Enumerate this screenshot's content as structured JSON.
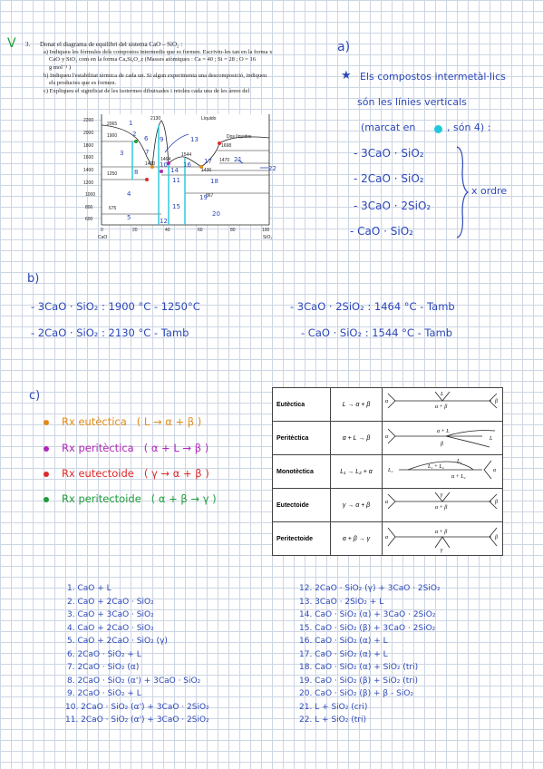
{
  "problem": {
    "check_mark": "V",
    "number": "3.",
    "line1": "Donat el diagrama de equilibri del sistema CaO – SiO₂ :",
    "line2": "a) Indiqueu les fórmules dels compostos intermedis que es formen. Escriviu-les tan en la forma x",
    "line3": "CaO·y SiO₂ com en la forma CaₓSiᵧO_z  (Masses atòmiques : Ca = 40 ; Si = 28 ; O = 16",
    "line4": "g mol⁻¹ )",
    "line5": "b) Indiqueu l'estabilitat tèrmica de cada un. Si algun experimenta una descomposició, indiqueu",
    "line6": "els productes que es formen.",
    "line7": "c) Expliqueu el significat de les isotermes dibuixades i  retoleu cada una de les àrees del"
  },
  "diagram": {
    "liquid_label": "Líquido",
    "two_liquids_label": "Dos líquidos",
    "y_ticks": [
      "2200",
      "2000",
      "1800",
      "1600",
      "1400",
      "1200",
      "1000",
      "800",
      "600"
    ],
    "x_ticks": [
      "0",
      "20",
      "40",
      "60",
      "80",
      "100"
    ],
    "x_left_label": "CaO",
    "x_right_label": "SiO₂",
    "temps": {
      "t2065": "2065",
      "t2130": "2130",
      "t1900": "1900",
      "t1698": "1698",
      "t1470": "1470",
      "t1464": "1464",
      "t1544": "1544",
      "t1436": "1436",
      "t1420": "1420",
      "t1250": "1250",
      "t867": "867",
      "t675": "675"
    },
    "region_numbers": [
      "1",
      "2",
      "3",
      "4",
      "5",
      "6",
      "7",
      "8",
      "9",
      "10",
      "11",
      "12",
      "13",
      "14",
      "15",
      "16",
      "17",
      "18",
      "19",
      "20",
      "21",
      "22"
    ]
  },
  "part_a": {
    "label": "a)",
    "star": "★",
    "text1": "Els compostos intermetàl·lics",
    "text2": "són les línies verticals",
    "text3": "(marcat en",
    "text3b": ", són 4) :",
    "compounds": [
      "- 3CaO · SiO₂",
      "- 2CaO · SiO₂",
      "- 3CaO · 2SiO₂",
      "- CaO · SiO₂"
    ],
    "bracket_note": "x ordre"
  },
  "part_b": {
    "label": "b)",
    "rows": [
      "- 3CaO · SiO₂  :  1900 °C - 1250°C",
      "- 3CaO · 2SiO₂  :  1464 °C - Tamb",
      "- 2CaO · SiO₂  :  2130 °C - Tamb",
      "- CaO · SiO₂  :  1544 °C - Tamb"
    ]
  },
  "part_c": {
    "label": "c)",
    "reactions": [
      {
        "name": "Rx  eutèctica",
        "eq": "( L → α + β )",
        "color": "#e08a1a"
      },
      {
        "name": "Rx  peritèctica",
        "eq": "( α + L → β )",
        "color": "#b028b8"
      },
      {
        "name": "Rx  eutectoide",
        "eq": "( γ → α + β )",
        "color": "#dd2a2a"
      },
      {
        "name": "Rx  peritectoide",
        "eq": "( α + β → γ )",
        "color": "#1e9c3a"
      }
    ],
    "table": [
      {
        "name": "Eutèctica",
        "eq": "L → α + β"
      },
      {
        "name": "Peritèctica",
        "eq": "α + L → β"
      },
      {
        "name": "Monotèctica",
        "eq": "L₁ → L₂ + α"
      },
      {
        "name": "Eutectoide",
        "eq": "γ → α + β"
      },
      {
        "name": "Peritectoide",
        "eq": "α + β → γ"
      }
    ],
    "sketch_labels": {
      "a": "α",
      "b": "β",
      "L": "L",
      "apb": "α + β",
      "aL": "α + L",
      "L1": "L₁",
      "L2": "L₂",
      "L1L2": "L₁ + L₂",
      "aL2": "α + L₂",
      "g": "γ"
    }
  },
  "phases_left": [
    "1.  CaO + L",
    "2.  CaO + 2CaO · SiO₂",
    "3.  CaO + 3CaO · SiO₂",
    "4.  CaO + 2CaO · SiO₂",
    "5.  CaO + 2CaO · SiO₂ (γ)",
    "6.  2CaO · SiO₂ + L",
    "7.  2CaO · SiO₂ (α)",
    "8.  2CaO · SiO₂ (α') + 3CaO · SiO₂",
    "9.  2CaO · SiO₂ + L",
    "10.  2CaO · SiO₂ (α') + 3CaO · 2SiO₂",
    "11.  2CaO · SiO₂ (α') + 3CaO · 2SiO₂"
  ],
  "phases_right": [
    "12.  2CaO · SiO₂ (γ) + 3CaO · 2SiO₂",
    "13.  3CaO · 2SiO₂ + L",
    "14.  CaO · SiO₂ (α) + 3CaO · 2SiO₂",
    "15.  CaO · SiO₂ (β) + 3CaO · 2SiO₂",
    "16.  CaO · SiO₂ (α) + L",
    "17.  CaO · SiO₂ (α) + L",
    "18.  CaO · SiO₂ (α) + SiO₂ (tri)",
    "19.  CaO · SiO₂ (β) + SiO₂ (tri)",
    "20.  CaO · SiO₂ (β) + β - SiO₂",
    "21.  L + SiO₂ (cri)",
    "22.  L + SiO₂ (tri)"
  ],
  "colors": {
    "ink": "#2b47b8",
    "cyan": "#22c8d8",
    "orange": "#e08a1a",
    "magenta": "#b028b8",
    "red": "#dd2a2a",
    "green": "#1e9c3a"
  }
}
